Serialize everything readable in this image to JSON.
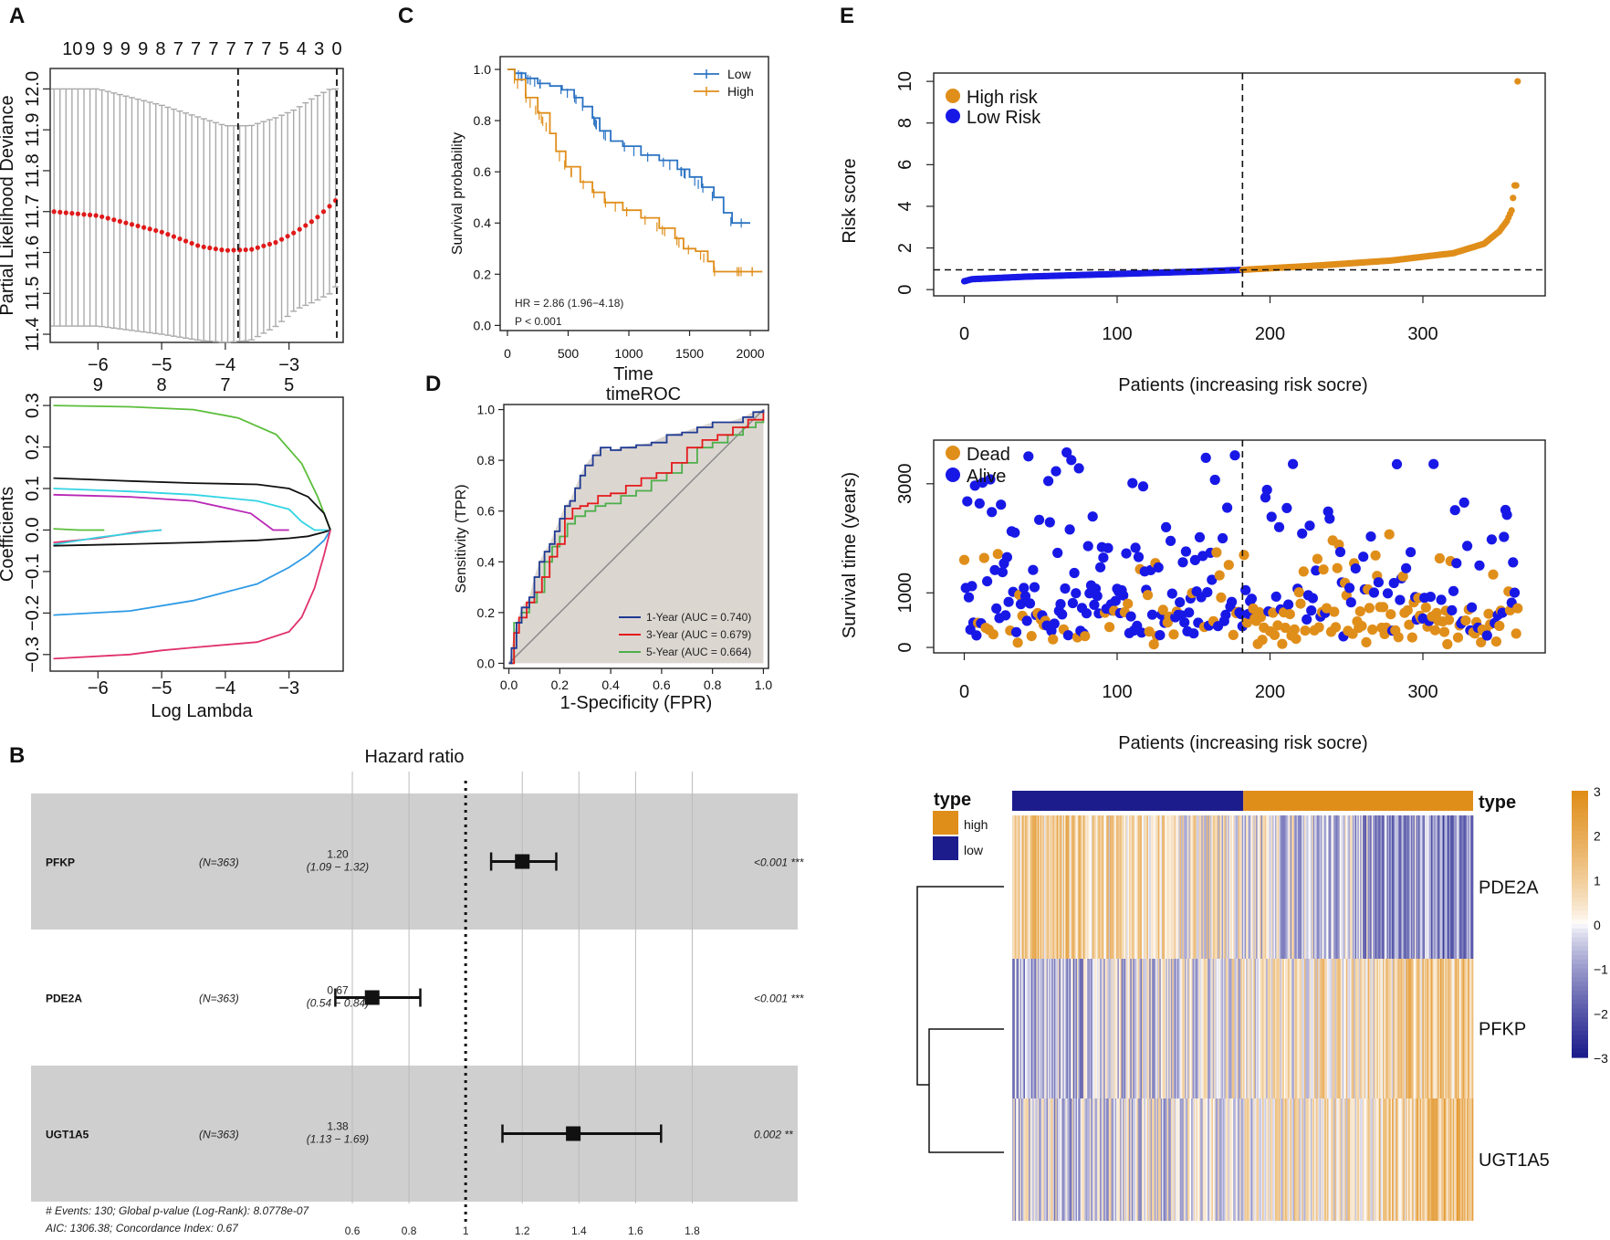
{
  "panels": {
    "A": "A",
    "B": "B",
    "C": "C",
    "D": "D",
    "E": "E"
  },
  "colors": {
    "orange": "#E08E1A",
    "blue": "#1818E6",
    "low_blue": "#2B73C3",
    "heat_low": "#1C1C8C",
    "heat_high": "#E08E1A",
    "grey_band": "#CFCFCF",
    "lasso_red": "#E01A1A",
    "lasso_grey": "#AAAAAA",
    "roc_1y": "#1F3A93",
    "roc_3y": "#E41A1C",
    "roc_5y": "#4DAF4A",
    "roc_fill": "#D8D2CC"
  },
  "chart_data": [
    {
      "id": "A_top",
      "type": "scatter",
      "title": "",
      "xlabel": "",
      "ylabel": "Partial Likelihood Deviance",
      "xlim": [
        -6.75,
        -2.15
      ],
      "ylim": [
        11.38,
        12.05
      ],
      "xticks": [
        "-6",
        "-5",
        "-4",
        "-3"
      ],
      "yticks": [
        "11.4",
        "11.5",
        "11.6",
        "11.7",
        "11.8",
        "11.9",
        "12.0"
      ],
      "top_labels": [
        "10",
        "9",
        "9",
        "9",
        "9",
        "8",
        "7",
        "7",
        "7",
        "7",
        "7",
        "7",
        "5",
        "4",
        "3",
        "0"
      ],
      "vlines": [
        -3.8,
        -2.25
      ],
      "curve": {
        "x": [
          -6.7,
          -6.0,
          -5.0,
          -4.4,
          -4.0,
          -3.6,
          -3.2,
          -2.9,
          -2.6,
          -2.35,
          -2.25
        ],
        "mean": [
          11.7,
          11.69,
          11.65,
          11.615,
          11.605,
          11.607,
          11.625,
          11.65,
          11.68,
          11.715,
          11.73
        ],
        "upper": [
          12.0,
          12.0,
          11.96,
          11.93,
          11.91,
          11.91,
          11.93,
          11.95,
          11.98,
          12.0,
          12.0
        ],
        "lower": [
          11.42,
          11.42,
          11.4,
          11.385,
          11.38,
          11.385,
          11.42,
          11.46,
          11.48,
          11.5,
          11.52
        ]
      }
    },
    {
      "id": "A_bottom",
      "type": "line",
      "xlabel": "Log Lambda",
      "ylabel": "Coefficients",
      "xlim": [
        -6.75,
        -2.15
      ],
      "ylim": [
        -0.34,
        0.32
      ],
      "xticks": [
        "-6",
        "-5",
        "-4",
        "-3"
      ],
      "yticks": [
        "-0.3",
        "-0.2",
        "-0.1",
        "0.0",
        "0.1",
        "0.2",
        "0.3"
      ],
      "top_labels": [
        "9",
        "8",
        "7",
        "5"
      ],
      "top_label_x": [
        -6.0,
        -5.0,
        -4.0,
        -3.0
      ],
      "series": [
        {
          "color": "#5BBE3B",
          "x": [
            -6.7,
            -5.5,
            -4.5,
            -3.8,
            -3.2,
            -2.8,
            -2.55,
            -2.35
          ],
          "values": [
            0.3,
            0.297,
            0.29,
            0.27,
            0.23,
            0.16,
            0.08,
            0.0
          ]
        },
        {
          "color": "#111111",
          "x": [
            -6.7,
            -5.5,
            -4.5,
            -3.5,
            -3.0,
            -2.7,
            -2.45,
            -2.35
          ],
          "values": [
            0.125,
            0.118,
            0.113,
            0.11,
            0.1,
            0.08,
            0.04,
            0.0
          ]
        },
        {
          "color": "#33D4E3",
          "x": [
            -6.7,
            -5.5,
            -4.5,
            -3.5,
            -3.0,
            -2.8,
            -2.6,
            -2.4
          ],
          "values": [
            0.1,
            0.093,
            0.085,
            0.07,
            0.05,
            0.02,
            0.0,
            0.0
          ]
        },
        {
          "color": "#B826B5",
          "x": [
            -6.7,
            -5.5,
            -4.5,
            -3.6,
            -3.25,
            -3.1,
            -3.0
          ],
          "values": [
            0.085,
            0.08,
            0.07,
            0.04,
            0.0,
            0.0,
            0.0
          ]
        },
        {
          "color": "#5BBE3B",
          "x": [
            -6.7,
            -6.3,
            -6.0,
            -5.9
          ],
          "values": [
            0.003,
            0.0,
            0.0,
            0.0
          ]
        },
        {
          "color": "#E0306A",
          "x": [
            -6.7,
            -6.0,
            -5.4,
            -5.0
          ],
          "values": [
            -0.03,
            -0.02,
            -0.005,
            0.0
          ]
        },
        {
          "color": "#33D4E3",
          "x": [
            -6.7,
            -6.0,
            -5.2,
            -5.0
          ],
          "values": [
            -0.035,
            -0.018,
            -0.003,
            0.0
          ]
        },
        {
          "color": "#111111",
          "x": [
            -6.7,
            -5.5,
            -4.5,
            -3.5,
            -3.0,
            -2.7,
            -2.45,
            -2.35
          ],
          "values": [
            -0.038,
            -0.034,
            -0.03,
            -0.025,
            -0.02,
            -0.015,
            -0.005,
            0.0
          ]
        },
        {
          "color": "#2E9AE6",
          "x": [
            -6.7,
            -5.5,
            -4.5,
            -3.5,
            -3.0,
            -2.7,
            -2.45,
            -2.35
          ],
          "values": [
            -0.205,
            -0.195,
            -0.17,
            -0.13,
            -0.09,
            -0.06,
            -0.025,
            0.0
          ]
        },
        {
          "color": "#E0306A",
          "x": [
            -6.7,
            -5.5,
            -5.0,
            -4.5,
            -3.5,
            -3.0,
            -2.8,
            -2.6,
            -2.45,
            -2.35
          ],
          "values": [
            -0.31,
            -0.3,
            -0.29,
            -0.283,
            -0.27,
            -0.245,
            -0.21,
            -0.14,
            -0.06,
            0.0
          ]
        }
      ]
    },
    {
      "id": "B",
      "type": "forest",
      "title": "Hazard ratio",
      "xticks": [
        "0.6",
        "0.8",
        "1",
        "1.2",
        "1.4",
        "1.6",
        "1.8"
      ],
      "xlim": [
        0.5,
        1.95
      ],
      "rows": [
        {
          "gene": "PFKP",
          "n": "(N=363)",
          "hr": "1.20",
          "ci": "(1.09 − 1.32)",
          "p": "<0.001 ***",
          "est": 1.2,
          "lo": 1.09,
          "hi": 1.32,
          "shaded": true
        },
        {
          "gene": "PDE2A",
          "n": "(N=363)",
          "hr": "0.67",
          "ci": "(0.54 − 0.84)",
          "p": "<0.001 ***",
          "est": 0.67,
          "lo": 0.54,
          "hi": 0.84,
          "shaded": false
        },
        {
          "gene": "UGT1A5",
          "n": "(N=363)",
          "hr": "1.38",
          "ci": "(1.13 − 1.69)",
          "p": "0.002 **",
          "est": 1.38,
          "lo": 1.13,
          "hi": 1.69,
          "shaded": true
        }
      ],
      "footnote1": "# Events: 130; Global p-value (Log-Rank): 8.0778e-07",
      "footnote2": "AIC: 1306.38; Concordance Index: 0.67"
    },
    {
      "id": "C",
      "type": "line",
      "title": "",
      "xlabel": "Time",
      "ylabel": "Survival probability",
      "xlim": [
        -60,
        2150
      ],
      "ylim": [
        -0.02,
        1.05
      ],
      "xticks": [
        "0",
        "500",
        "1000",
        "1500",
        "2000"
      ],
      "yticks": [
        "0.0",
        "0.2",
        "0.4",
        "0.6",
        "0.8",
        "1.0"
      ],
      "legend": [
        "Low",
        "High"
      ],
      "annotation1": "HR = 2.86 (1.96−4.18)",
      "annotation2": "P < 0.001",
      "series": [
        {
          "name": "Low",
          "color": "#2B73C3",
          "x": [
            0,
            60,
            150,
            250,
            350,
            450,
            550,
            620,
            700,
            760,
            850,
            950,
            1100,
            1250,
            1400,
            1500,
            1600,
            1700,
            1780,
            1850,
            2000
          ],
          "values": [
            1.0,
            0.985,
            0.965,
            0.945,
            0.935,
            0.92,
            0.89,
            0.855,
            0.81,
            0.76,
            0.72,
            0.7,
            0.665,
            0.645,
            0.61,
            0.58,
            0.54,
            0.5,
            0.44,
            0.4,
            0.4
          ]
        },
        {
          "name": "High",
          "color": "#E08E1A",
          "x": [
            0,
            60,
            150,
            250,
            350,
            400,
            480,
            600,
            700,
            800,
            950,
            1100,
            1250,
            1380,
            1450,
            1550,
            1650,
            1700,
            1800,
            2100
          ],
          "values": [
            1.0,
            0.96,
            0.89,
            0.83,
            0.75,
            0.68,
            0.62,
            0.56,
            0.52,
            0.48,
            0.45,
            0.42,
            0.38,
            0.34,
            0.3,
            0.29,
            0.25,
            0.21,
            0.21,
            0.21
          ]
        }
      ]
    },
    {
      "id": "D",
      "type": "line",
      "title": "timeROC",
      "xlabel": "1-Specificity (FPR)",
      "ylabel": "Sensitivity (TPR)",
      "xlim": [
        -0.02,
        1.02
      ],
      "ylim": [
        -0.02,
        1.02
      ],
      "xticks": [
        "0.0",
        "0.2",
        "0.4",
        "0.6",
        "0.8",
        "1.0"
      ],
      "yticks": [
        "0.0",
        "0.2",
        "0.4",
        "0.6",
        "0.8",
        "1.0"
      ],
      "legend": [
        "1-Year (AUC = 0.740)",
        "3-Year (AUC = 0.679)",
        "5-Year (AUC = 0.664)"
      ],
      "series": [
        {
          "name": "1-Year (AUC = 0.740)",
          "color": "#1F3A93",
          "x": [
            0,
            0.01,
            0.03,
            0.05,
            0.08,
            0.1,
            0.12,
            0.14,
            0.16,
            0.18,
            0.2,
            0.22,
            0.24,
            0.26,
            0.28,
            0.3,
            0.33,
            0.36,
            0.4,
            0.44,
            0.5,
            0.56,
            0.62,
            0.68,
            0.74,
            0.8,
            0.86,
            0.92,
            0.96,
            1.0
          ],
          "values": [
            0,
            0.06,
            0.16,
            0.22,
            0.26,
            0.34,
            0.4,
            0.44,
            0.47,
            0.52,
            0.57,
            0.62,
            0.64,
            0.69,
            0.74,
            0.78,
            0.82,
            0.85,
            0.84,
            0.85,
            0.86,
            0.87,
            0.9,
            0.91,
            0.93,
            0.95,
            0.95,
            0.97,
            0.99,
            1.0
          ]
        },
        {
          "name": "3-Year (AUC = 0.679)",
          "color": "#E41A1C",
          "x": [
            0,
            0.02,
            0.04,
            0.07,
            0.1,
            0.13,
            0.16,
            0.19,
            0.22,
            0.25,
            0.28,
            0.31,
            0.35,
            0.4,
            0.46,
            0.52,
            0.58,
            0.64,
            0.7,
            0.76,
            0.82,
            0.88,
            0.94,
            1.0
          ],
          "values": [
            0,
            0.12,
            0.18,
            0.24,
            0.28,
            0.34,
            0.42,
            0.47,
            0.57,
            0.61,
            0.62,
            0.63,
            0.66,
            0.67,
            0.7,
            0.73,
            0.75,
            0.79,
            0.85,
            0.88,
            0.9,
            0.93,
            0.96,
            1.0
          ]
        },
        {
          "name": "5-Year (AUC = 0.664)",
          "color": "#4DAF4A",
          "x": [
            0,
            0.02,
            0.05,
            0.08,
            0.11,
            0.14,
            0.17,
            0.2,
            0.23,
            0.26,
            0.3,
            0.34,
            0.38,
            0.44,
            0.5,
            0.56,
            0.62,
            0.68,
            0.74,
            0.8,
            0.86,
            0.92,
            0.97,
            1.0
          ],
          "values": [
            0,
            0.16,
            0.2,
            0.24,
            0.28,
            0.4,
            0.46,
            0.5,
            0.55,
            0.58,
            0.6,
            0.62,
            0.63,
            0.66,
            0.68,
            0.72,
            0.75,
            0.79,
            0.85,
            0.87,
            0.9,
            0.93,
            0.95,
            1.0
          ]
        }
      ]
    },
    {
      "id": "E_risk",
      "type": "scatter",
      "xlabel": "Patients (increasing risk socre)",
      "ylabel": "Risk score",
      "xlim": [
        -20,
        380
      ],
      "ylim": [
        -0.3,
        10.4
      ],
      "xticks": [
        "0",
        "100",
        "200",
        "300"
      ],
      "yticks": [
        "0",
        "2",
        "4",
        "6",
        "8",
        "10"
      ],
      "legend": [
        "High risk",
        "Low Risk"
      ],
      "n_patients": 363,
      "cutoff_index": 182,
      "cutoff_value": 0.95,
      "score_knots": {
        "x": [
          0,
          5,
          40,
          100,
          150,
          182,
          230,
          280,
          320,
          340,
          350,
          355,
          358,
          360,
          361,
          362
        ],
        "values": [
          0.4,
          0.5,
          0.62,
          0.75,
          0.86,
          0.95,
          1.15,
          1.4,
          1.75,
          2.2,
          2.8,
          3.3,
          3.8,
          5.0,
          5.0,
          10.0
        ]
      }
    },
    {
      "id": "E_survival",
      "type": "scatter",
      "xlabel": "Patients (increasing risk socre)",
      "ylabel": "Survival time (years)",
      "xlim": [
        -20,
        380
      ],
      "ylim": [
        -100,
        3800
      ],
      "xticks": [
        "0",
        "100",
        "200",
        "300"
      ],
      "yticks": [
        "0",
        "1000",
        "3000"
      ],
      "legend": [
        "Dead",
        "Alive"
      ],
      "n_points": 363,
      "cutoff_index": 182
    },
    {
      "id": "E_heatmap",
      "type": "heatmap",
      "rows": [
        "PDE2A",
        "PFKP",
        "UGT1A5"
      ],
      "annotation_title": "type",
      "annotation_label": "type",
      "legend_items": [
        "high",
        "low"
      ],
      "scale_ticks": [
        "3",
        "2",
        "1",
        "0",
        "−1",
        "−2",
        "−3"
      ],
      "n_columns": 363,
      "split_index": 182
    }
  ]
}
